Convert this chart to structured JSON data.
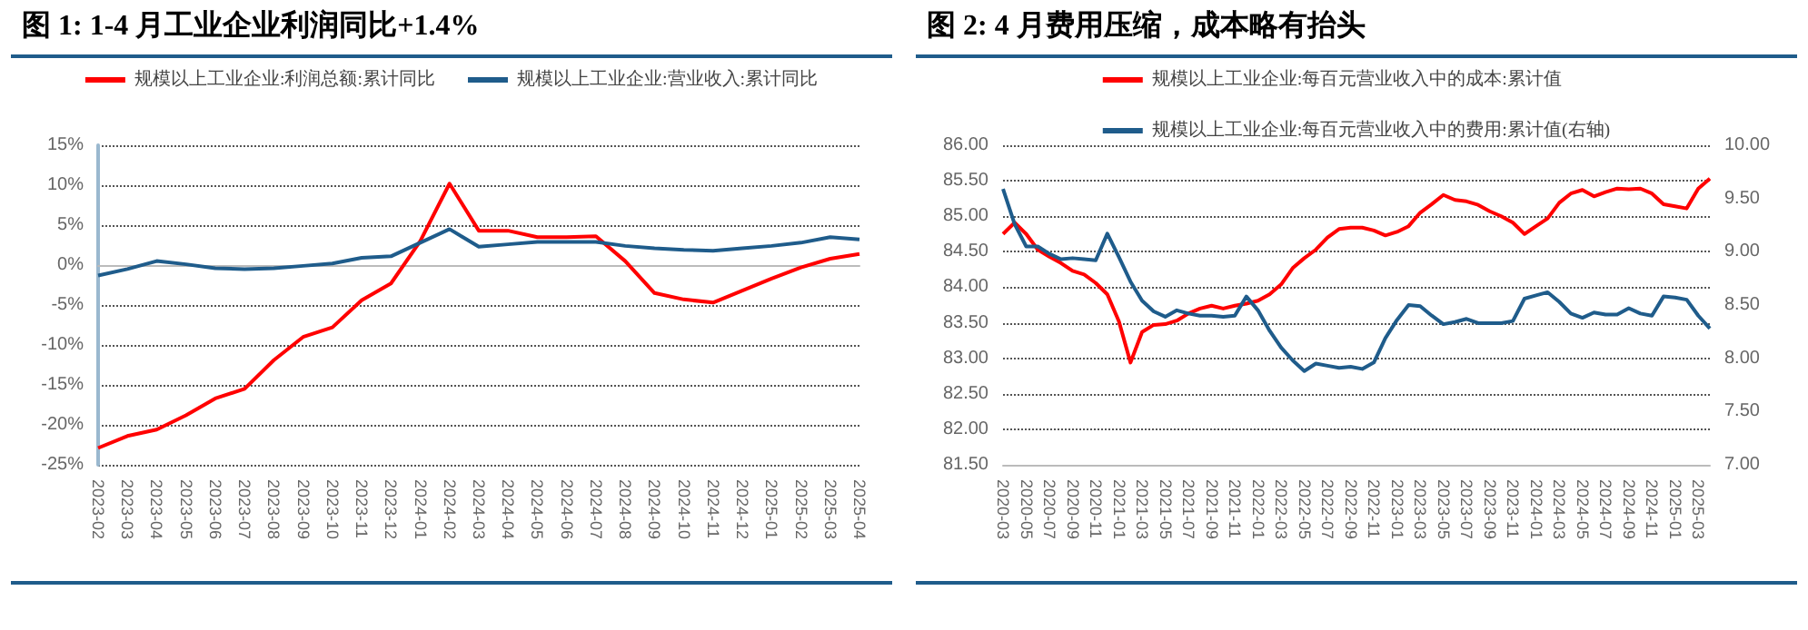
{
  "chart_data": [
    {
      "type": "line",
      "title": "图 1: 1-4 月工业企业利润同比+1.4%",
      "categories": [
        "2023-02",
        "2023-03",
        "2023-04",
        "2023-05",
        "2023-06",
        "2023-07",
        "2023-08",
        "2023-09",
        "2023-10",
        "2023-11",
        "2023-12",
        "2024-01",
        "2024-02",
        "2024-03",
        "2024-04",
        "2024-05",
        "2024-06",
        "2024-07",
        "2024-08",
        "2024-09",
        "2024-10",
        "2024-11",
        "2024-12",
        "2025-01",
        "2025-02",
        "2025-03",
        "2025-04"
      ],
      "series": [
        {
          "name": "规模以上工业企业:利润总额:累计同比",
          "color": "#ff0000",
          "values": [
            -22.9,
            -21.4,
            -20.6,
            -18.8,
            -16.7,
            -15.5,
            -11.9,
            -9.0,
            -7.8,
            -4.4,
            -2.3,
            3.0,
            10.2,
            4.3,
            4.3,
            3.5,
            3.5,
            3.6,
            0.5,
            -3.5,
            -4.3,
            -4.7,
            -3.2,
            -1.7,
            -0.3,
            0.8,
            1.4
          ]
        },
        {
          "name": "规模以上工业企业:营业收入:累计同比",
          "color": "#1f5c8b",
          "values": [
            -1.3,
            -0.5,
            0.5,
            0.1,
            -0.4,
            -0.5,
            -0.4,
            -0.1,
            0.2,
            0.9,
            1.1,
            2.8,
            4.5,
            2.3,
            2.6,
            2.9,
            2.9,
            2.9,
            2.4,
            2.1,
            1.9,
            1.8,
            2.1,
            2.4,
            2.8,
            3.5,
            3.2
          ]
        }
      ],
      "ylim": [
        -25,
        15
      ],
      "yticks": [
        {
          "value": -25,
          "label": "-25%"
        },
        {
          "value": -20,
          "label": "-20%"
        },
        {
          "value": -15,
          "label": "-15%"
        },
        {
          "value": -10,
          "label": "-10%"
        },
        {
          "value": -5,
          "label": "-5%"
        },
        {
          "value": 0,
          "label": "0%"
        },
        {
          "value": 5,
          "label": "5%"
        },
        {
          "value": 10,
          "label": "10%"
        },
        {
          "value": 15,
          "label": "15%"
        }
      ],
      "grid": "y",
      "legend": "top",
      "marker": "none"
    },
    {
      "type": "line",
      "title": "图 2: 4 月费用压缩，成本略有抬头",
      "categories": [
        "2020-03",
        null,
        "2020-05",
        null,
        "2020-07",
        null,
        "2020-09",
        null,
        "2020-11",
        null,
        "2021-01",
        null,
        "2021-03",
        null,
        "2021-05",
        null,
        "2021-07",
        null,
        "2021-09",
        null,
        "2021-11",
        null,
        "2022-01",
        null,
        "2022-03",
        null,
        "2022-05",
        null,
        "2022-07",
        null,
        "2022-09",
        null,
        "2022-11",
        null,
        "2023-01",
        null,
        "2023-03",
        null,
        "2023-05",
        null,
        "2023-07",
        null,
        "2023-09",
        null,
        "2023-11",
        null,
        "2024-01",
        null,
        "2024-03",
        null,
        "2024-05",
        null,
        "2024-07",
        null,
        "2024-09",
        null,
        "2024-11",
        null,
        "2025-01",
        null,
        "2025-03",
        null
      ],
      "series": [
        {
          "name": "规模以上工业企业:每百元营业收入中的成本:累计值",
          "color": "#ff0000",
          "values": [
            84.75,
            84.91,
            84.75,
            84.53,
            84.43,
            84.34,
            84.23,
            84.18,
            84.06,
            83.9,
            83.52,
            82.94,
            83.37,
            83.47,
            83.48,
            83.53,
            83.63,
            83.7,
            83.74,
            83.7,
            83.74,
            83.77,
            83.81,
            83.9,
            84.04,
            84.27,
            84.41,
            84.53,
            84.7,
            84.82,
            84.84,
            84.84,
            84.8,
            84.73,
            84.78,
            84.86,
            85.05,
            85.17,
            85.3,
            85.23,
            85.21,
            85.16,
            85.07,
            85.0,
            84.91,
            84.75,
            84.86,
            84.97,
            85.19,
            85.32,
            85.37,
            85.28,
            85.34,
            85.39,
            85.38,
            85.39,
            85.32,
            85.17,
            85.14,
            85.11,
            85.39,
            85.53
          ]
        },
        {
          "name": "规模以上工业企业:每百元营业收入中的费用:累计值(右轴)",
          "color": "#1f5c8b",
          "axis": "y2",
          "values": [
            9.59,
            9.26,
            9.05,
            9.05,
            8.98,
            8.93,
            8.94,
            8.93,
            8.92,
            9.17,
            8.95,
            8.72,
            8.54,
            8.44,
            8.39,
            8.45,
            8.42,
            8.4,
            8.4,
            8.39,
            8.4,
            8.58,
            8.45,
            8.26,
            8.1,
            7.98,
            7.88,
            7.95,
            7.93,
            7.91,
            7.92,
            7.9,
            7.96,
            8.19,
            8.36,
            8.5,
            8.49,
            8.4,
            8.32,
            8.34,
            8.37,
            8.33,
            8.33,
            8.33,
            8.35,
            8.56,
            8.59,
            8.62,
            8.53,
            8.42,
            8.38,
            8.43,
            8.41,
            8.41,
            8.47,
            8.42,
            8.4,
            8.58,
            8.57,
            8.55,
            8.4,
            8.28
          ]
        }
      ],
      "ylim": [
        81.5,
        86
      ],
      "yticks": [
        {
          "value": 81.5,
          "label": "81.50"
        },
        {
          "value": 82,
          "label": "82.00"
        },
        {
          "value": 82.5,
          "label": "82.50"
        },
        {
          "value": 83,
          "label": "83.00"
        },
        {
          "value": 83.5,
          "label": "83.50"
        },
        {
          "value": 84,
          "label": "84.00"
        },
        {
          "value": 84.5,
          "label": "84.50"
        },
        {
          "value": 85,
          "label": "85.00"
        },
        {
          "value": 85.5,
          "label": "85.50"
        },
        {
          "value": 86,
          "label": "86.00"
        }
      ],
      "y2lim": [
        7,
        10
      ],
      "y2ticks": [
        {
          "value": 7,
          "label": "7.00"
        },
        {
          "value": 7.5,
          "label": "7.50"
        },
        {
          "value": 8,
          "label": "8.00"
        },
        {
          "value": 8.5,
          "label": "8.50"
        },
        {
          "value": 9,
          "label": "9.00"
        },
        {
          "value": 9.5,
          "label": "9.50"
        },
        {
          "value": 10,
          "label": "10.00"
        }
      ],
      "grid": "y",
      "legend": "top",
      "marker": "none"
    }
  ]
}
